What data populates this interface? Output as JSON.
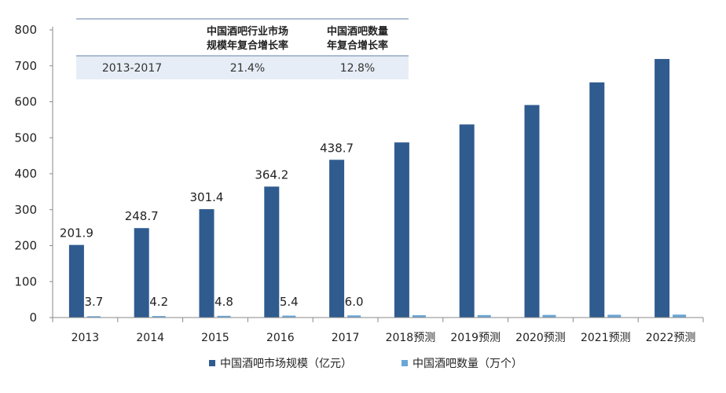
{
  "chart_data": {
    "type": "bar",
    "categories": [
      "2013",
      "2014",
      "2015",
      "2016",
      "2017",
      "2018预测",
      "2019预测",
      "2020预测",
      "2021预测",
      "2022预测"
    ],
    "series": [
      {
        "name": "中国酒吧市场规模（亿元）",
        "values": [
          201.9,
          248.7,
          301.4,
          364.2,
          438.7,
          487,
          537,
          591,
          654,
          719
        ],
        "labels": [
          "201.9",
          "248.7",
          "301.4",
          "364.2",
          "438.7",
          "",
          "",
          "",
          "",
          ""
        ],
        "color": "#2f5b8f"
      },
      {
        "name": "中国酒吧数量（万个）",
        "values": [
          3.7,
          4.2,
          4.8,
          5.4,
          6.0,
          6.5,
          6.9,
          7.3,
          7.8,
          8.2
        ],
        "labels": [
          "3.7",
          "4.2",
          "4.8",
          "5.4",
          "6.0",
          "",
          "",
          "",
          "",
          ""
        ],
        "color": "#6aa6d6"
      }
    ],
    "yticks": [
      0,
      100,
      200,
      300,
      400,
      500,
      600,
      700,
      800
    ],
    "ylim": [
      0,
      800
    ],
    "legend_position": "bottom",
    "grid": false
  },
  "cagr_table": {
    "header": [
      "",
      "中国酒吧行业市场规模年复合增长率",
      "中国酒吧数量年复合增长率"
    ],
    "header_lines": [
      [],
      [
        "中国酒吧行业市场",
        "规模年复合增长率"
      ],
      [
        "中国酒吧数量",
        "年复合增长率"
      ]
    ],
    "row": [
      "2013-2017",
      "21.4%",
      "12.8%"
    ]
  }
}
